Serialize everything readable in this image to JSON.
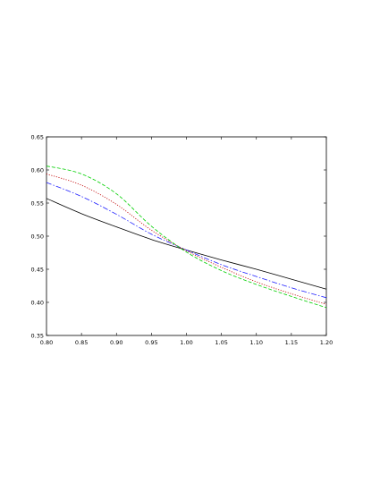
{
  "chart_data": {
    "type": "line",
    "title": "",
    "xlabel": "",
    "ylabel": "",
    "xlim": [
      0.8,
      1.2
    ],
    "ylim": [
      0.35,
      0.65
    ],
    "grid": false,
    "legend": "none",
    "x_ticks": [
      "0.80",
      "0.85",
      "0.90",
      "0.95",
      "1.00",
      "1.05",
      "1.10",
      "1.15",
      "1.20"
    ],
    "y_ticks": [
      "0.35",
      "0.40",
      "0.45",
      "0.50",
      "0.55",
      "0.60",
      "0.65"
    ],
    "x": [
      0.8,
      0.85,
      0.9,
      0.95,
      1.0,
      1.05,
      1.1,
      1.15,
      1.2
    ],
    "series": [
      {
        "color": "#000000",
        "dash": "solid",
        "values": [
          0.557,
          0.534,
          0.514,
          0.495,
          0.479,
          0.464,
          0.45,
          0.435,
          0.42
        ]
      },
      {
        "color": "#2020ff",
        "dash": "dashdot",
        "values": [
          0.581,
          0.56,
          0.533,
          0.503,
          0.479,
          0.457,
          0.439,
          0.422,
          0.407
        ]
      },
      {
        "color": "#c00000",
        "dash": "dotted",
        "values": [
          0.594,
          0.577,
          0.548,
          0.509,
          0.478,
          0.453,
          0.431,
          0.413,
          0.397
        ]
      },
      {
        "color": "#00d000",
        "dash": "dashed",
        "values": [
          0.606,
          0.594,
          0.564,
          0.515,
          0.476,
          0.448,
          0.427,
          0.409,
          0.392
        ]
      }
    ]
  }
}
